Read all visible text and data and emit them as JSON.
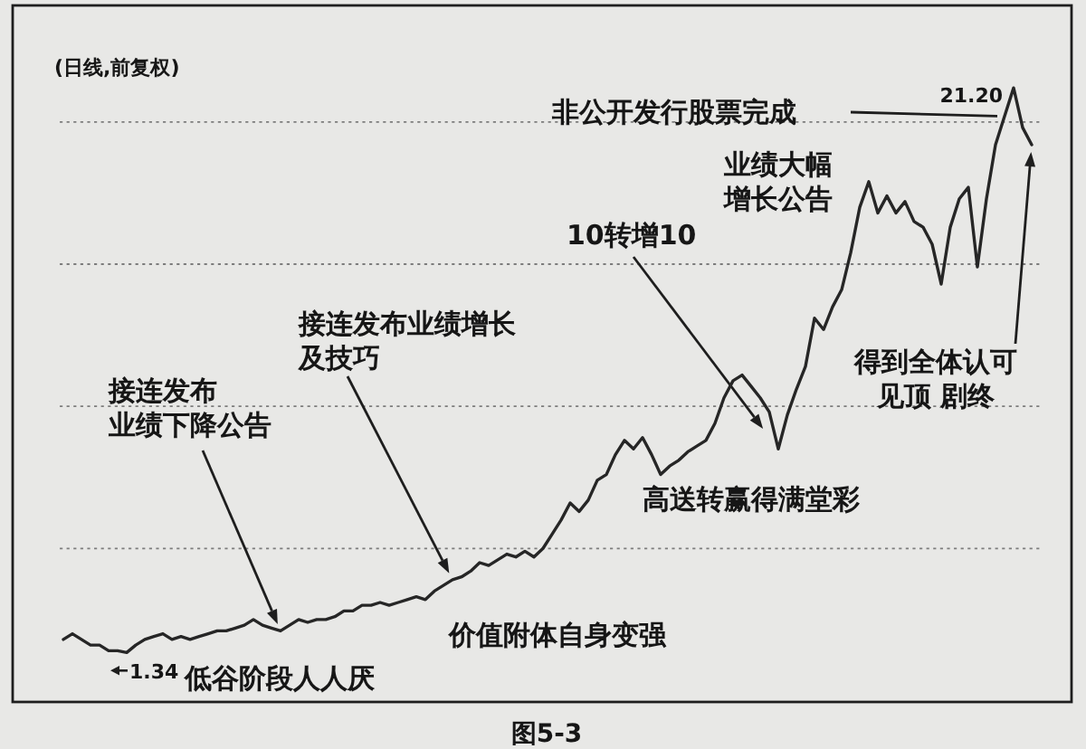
{
  "chart_data": {
    "type": "line",
    "title": "(日线,前复权)",
    "categories": [
      null,
      null,
      null,
      null,
      null,
      null,
      null,
      null,
      null,
      null,
      null,
      null,
      null,
      null,
      null,
      null,
      null,
      null,
      null,
      null,
      null,
      null,
      null,
      null,
      null,
      null,
      null,
      null,
      null,
      null,
      null,
      null,
      null,
      null,
      null,
      null,
      null,
      null,
      null,
      null,
      null,
      null,
      null,
      null,
      null,
      null,
      null,
      null,
      null,
      null,
      null,
      null,
      null,
      null,
      null,
      null,
      null,
      null,
      null,
      null,
      null,
      null,
      null,
      null,
      null,
      null,
      null,
      null,
      null,
      null,
      null,
      null,
      null,
      null,
      null,
      null,
      null,
      null,
      null,
      null,
      null,
      null,
      null,
      null,
      null,
      null,
      null,
      null,
      null,
      null,
      null,
      null,
      null,
      null,
      null,
      null,
      null,
      null,
      null,
      null,
      null,
      null,
      null,
      null,
      null,
      null,
      null,
      null
    ],
    "values": [
      1.8,
      2.0,
      1.8,
      1.6,
      1.6,
      1.4,
      1.4,
      1.34,
      1.6,
      1.8,
      1.9,
      2.0,
      1.8,
      1.9,
      1.8,
      1.9,
      2.0,
      2.1,
      2.1,
      2.2,
      2.3,
      2.5,
      2.3,
      2.2,
      2.1,
      2.3,
      2.5,
      2.4,
      2.5,
      2.5,
      2.6,
      2.8,
      2.8,
      3.0,
      3.0,
      3.1,
      3.0,
      3.1,
      3.2,
      3.3,
      3.2,
      3.5,
      3.7,
      3.9,
      4.0,
      4.2,
      4.5,
      4.4,
      4.6,
      4.8,
      4.7,
      4.9,
      4.7,
      5.0,
      5.5,
      6.0,
      6.6,
      6.3,
      6.7,
      7.4,
      7.6,
      8.3,
      8.8,
      8.5,
      8.9,
      8.3,
      7.6,
      7.9,
      8.1,
      8.4,
      8.6,
      8.8,
      9.4,
      10.3,
      10.9,
      11.1,
      10.7,
      10.3,
      9.8,
      8.5,
      9.7,
      10.6,
      11.4,
      13.1,
      12.7,
      13.5,
      14.1,
      15.4,
      17.0,
      17.9,
      16.8,
      17.4,
      16.8,
      17.2,
      16.5,
      16.3,
      15.7,
      14.3,
      16.3,
      17.3,
      17.7,
      14.9,
      17.3,
      19.2,
      20.2,
      21.2,
      19.8,
      19.2
    ],
    "color": "#262626",
    "value_labels": [
      null,
      null,
      null,
      null,
      null,
      null,
      null,
      "1.34",
      null,
      null,
      null,
      null,
      null,
      null,
      null,
      null,
      null,
      null,
      null,
      null,
      null,
      null,
      null,
      null,
      null,
      null,
      null,
      null,
      null,
      null,
      null,
      null,
      null,
      null,
      null,
      null,
      null,
      null,
      null,
      null,
      null,
      null,
      null,
      null,
      null,
      null,
      null,
      null,
      null,
      null,
      null,
      null,
      null,
      null,
      null,
      null,
      null,
      null,
      null,
      null,
      null,
      null,
      null,
      null,
      null,
      null,
      null,
      null,
      null,
      null,
      null,
      null,
      null,
      null,
      null,
      null,
      null,
      null,
      null,
      null,
      null,
      null,
      null,
      null,
      null,
      null,
      null,
      null,
      null,
      null,
      null,
      null,
      null,
      null,
      null,
      null,
      null,
      null,
      null,
      null,
      null,
      null,
      null,
      null,
      null,
      "21.20",
      null,
      null
    ],
    "ylim": [
      -0.4,
      24.1
    ],
    "yticks": [
      {
        "value": 5,
        "label": null
      },
      {
        "value": 10,
        "label": null
      },
      {
        "value": 15,
        "label": null
      },
      {
        "value": 20,
        "label": null
      }
    ],
    "grid": "y",
    "annotations": [
      "非公开发行股票完成",
      "业绩大幅增长公告",
      "10转增10",
      "接连发布业绩增长及技巧",
      "接连发布业绩下降公告",
      "得到全体认可见顶 剧终",
      "高送转赢得满堂彩",
      "价值附体自身变强",
      "低谷阶段人人厌",
      "图5-3"
    ]
  }
}
